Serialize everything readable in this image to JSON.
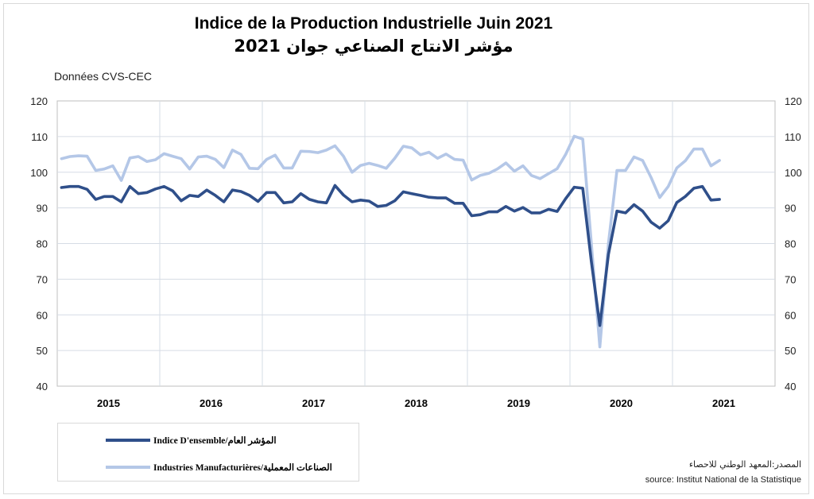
{
  "title_fr": "Indice de la Production Industrielle Juin 2021",
  "title_ar": "مؤشر الانتاج الصناعي جوان 2021",
  "units": "Données CVS-CEC",
  "legend": {
    "series1": "Indice D'ensemble/المؤشر العام",
    "series2": "Industries Manufacturières/الصناعات المعملية"
  },
  "source_ar": "المصدر:المعهد الوطني للاحصاء",
  "source_fr": "source: Institut National de la Statistique",
  "colors": {
    "series1": "#2f4f8a",
    "series2": "#b4c7e7",
    "grid": "#d6dce5"
  },
  "chart_data": {
    "type": "line",
    "title": "Indice de la Production Industrielle Juin 2021",
    "ylim": [
      40,
      120
    ],
    "yticks": [
      40,
      50,
      60,
      70,
      80,
      90,
      100,
      110,
      120
    ],
    "ylabel": "Données CVS-CEC",
    "x_start": "2015-01",
    "x_end": "2021-06",
    "year_labels": [
      "2015",
      "2016",
      "2017",
      "2018",
      "2019",
      "2020",
      "2021"
    ],
    "series": [
      {
        "name": "Indice D'ensemble/المؤشر العام",
        "values": [
          95.7,
          96.0,
          96.0,
          95.2,
          92.4,
          93.2,
          93.2,
          91.7,
          96.0,
          94.0,
          94.3,
          95.3,
          96.0,
          94.8,
          92.0,
          93.5,
          93.2,
          95.0,
          93.5,
          91.7,
          95.0,
          94.6,
          93.5,
          91.8,
          94.3,
          94.3,
          91.4,
          91.7,
          94.0,
          92.4,
          91.7,
          91.4,
          96.3,
          93.6,
          91.7,
          92.2,
          91.9,
          90.4,
          90.7,
          92.0,
          94.5,
          94.0,
          93.5,
          93.0,
          92.8,
          92.8,
          91.3,
          91.3,
          87.8,
          88.1,
          88.9,
          88.9,
          90.4,
          89.1,
          90.1,
          88.6,
          88.6,
          89.6,
          89.0,
          92.6,
          95.8,
          95.5,
          75.0,
          57.0,
          77.0,
          89.1,
          88.6,
          90.9,
          89.1,
          86.0,
          84.3,
          86.4,
          91.5,
          93.2,
          95.5,
          96.0,
          92.2,
          92.4
        ]
      },
      {
        "name": "Industries Manufacturières/الصناعات المعملية",
        "values": [
          103.8,
          104.4,
          104.6,
          104.5,
          100.5,
          100.9,
          101.8,
          97.7,
          104.0,
          104.4,
          103.0,
          103.5,
          105.2,
          104.5,
          103.8,
          100.9,
          104.3,
          104.5,
          103.6,
          101.3,
          106.2,
          105.0,
          101.1,
          101.0,
          103.6,
          104.8,
          101.2,
          101.2,
          105.9,
          105.8,
          105.5,
          106.2,
          107.4,
          104.5,
          100.0,
          101.9,
          102.5,
          101.9,
          101.1,
          103.9,
          107.3,
          106.8,
          104.9,
          105.6,
          103.9,
          105.1,
          103.6,
          103.4,
          97.8,
          99.1,
          99.7,
          100.9,
          102.6,
          100.3,
          101.8,
          99.1,
          98.2,
          99.6,
          101.0,
          105.0,
          110.1,
          109.3,
          80.0,
          51.0,
          80.0,
          100.5,
          100.5,
          104.3,
          103.3,
          98.5,
          92.9,
          96.0,
          101.2,
          103.2,
          106.5,
          106.5,
          101.8,
          103.3
        ]
      }
    ]
  }
}
